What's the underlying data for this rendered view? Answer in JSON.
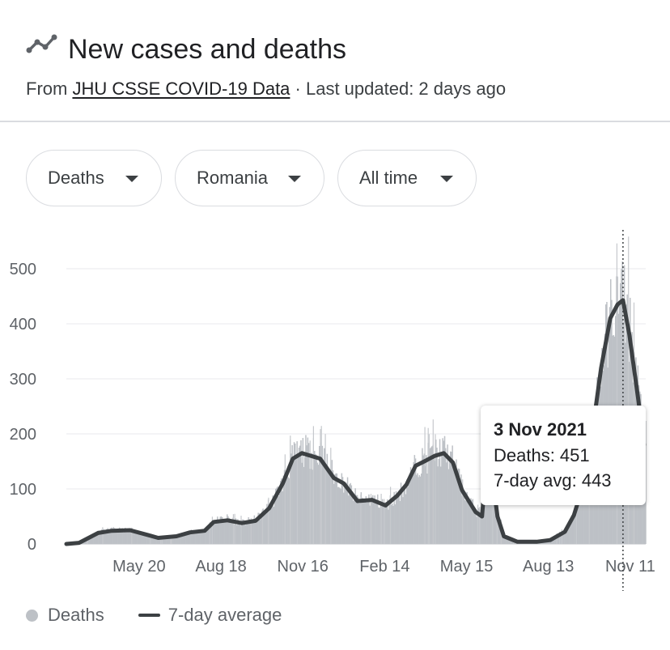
{
  "header": {
    "title": "New cases and deaths",
    "subtitle_prefix": "From ",
    "source_link": "JHU CSSE COVID-19 Data",
    "subtitle_suffix": " · Last updated: 2 days ago",
    "icon": "trend-line-icon"
  },
  "filters": {
    "metric": "Deaths",
    "region": "Romania",
    "range": "All time",
    "icon": "caret-down-icon"
  },
  "tooltip": {
    "date": "3 Nov 2021",
    "deaths_label": "Deaths: 451",
    "avg_label": "7-day avg: 443"
  },
  "legend": {
    "deaths": "Deaths",
    "average": "7-day average"
  },
  "colors": {
    "bars": "#bdc1c6",
    "bars_light": "#c6c9cd",
    "avg_line": "#3c4043",
    "grid": "#e8eaed"
  },
  "chart_data": {
    "type": "bar",
    "x_axis": "time",
    "tick_labels": [
      "May 20",
      "Aug 18",
      "Nov 16",
      "Feb 14",
      "May 15",
      "Aug 13",
      "Nov 11"
    ],
    "ylim": [
      0,
      570
    ],
    "yticks": [
      0,
      100,
      200,
      300,
      400,
      500
    ],
    "grid": true,
    "legend_position": "bottom-left",
    "highlighted": {
      "date": "3 Nov 2021",
      "deaths": 451,
      "avg": 443
    },
    "series": [
      {
        "name": "Deaths",
        "kind": "bar",
        "points": [
          [
            "2020-03-01",
            0
          ],
          [
            "2020-03-20",
            4
          ],
          [
            "2020-04-05",
            22
          ],
          [
            "2020-04-20",
            26
          ],
          [
            "2020-05-10",
            25
          ],
          [
            "2020-05-30",
            17
          ],
          [
            "2020-06-10",
            11
          ],
          [
            "2020-06-30",
            15
          ],
          [
            "2020-07-15",
            22
          ],
          [
            "2020-07-31",
            26
          ],
          [
            "2020-08-10",
            42
          ],
          [
            "2020-08-25",
            47
          ],
          [
            "2020-09-10",
            38
          ],
          [
            "2020-09-25",
            45
          ],
          [
            "2020-10-10",
            68
          ],
          [
            "2020-10-25",
            115
          ],
          [
            "2020-11-05",
            158
          ],
          [
            "2020-11-15",
            170
          ],
          [
            "2020-11-25",
            165
          ],
          [
            "2020-12-05",
            160
          ],
          [
            "2020-12-20",
            125
          ],
          [
            "2020-12-31",
            112
          ],
          [
            "2021-01-15",
            80
          ],
          [
            "2021-01-31",
            82
          ],
          [
            "2021-02-15",
            70
          ],
          [
            "2021-02-28",
            90
          ],
          [
            "2021-03-10",
            110
          ],
          [
            "2021-03-20",
            145
          ],
          [
            "2021-04-01",
            155
          ],
          [
            "2021-04-10",
            165
          ],
          [
            "2021-04-20",
            170
          ],
          [
            "2021-04-30",
            150
          ],
          [
            "2021-05-10",
            100
          ],
          [
            "2021-05-25",
            60
          ],
          [
            "2021-06-01",
            52
          ],
          [
            "2021-06-03",
            90
          ],
          [
            "2021-06-05",
            150
          ],
          [
            "2021-06-08",
            155
          ],
          [
            "2021-06-12",
            130
          ],
          [
            "2021-06-18",
            50
          ],
          [
            "2021-06-25",
            15
          ],
          [
            "2021-07-10",
            5
          ],
          [
            "2021-07-31",
            5
          ],
          [
            "2021-08-15",
            8
          ],
          [
            "2021-08-31",
            24
          ],
          [
            "2021-09-10",
            55
          ],
          [
            "2021-09-20",
            110
          ],
          [
            "2021-09-30",
            210
          ],
          [
            "2021-10-10",
            330
          ],
          [
            "2021-10-20",
            420
          ],
          [
            "2021-10-28",
            440
          ],
          [
            "2021-11-03",
            451
          ],
          [
            "2021-11-10",
            390
          ],
          [
            "2021-11-20",
            270
          ],
          [
            "2021-11-26",
            190
          ]
        ]
      },
      {
        "name": "7-day average",
        "kind": "line",
        "points": [
          [
            "2020-03-01",
            0
          ],
          [
            "2020-03-15",
            2
          ],
          [
            "2020-04-05",
            20
          ],
          [
            "2020-04-20",
            24
          ],
          [
            "2020-05-10",
            25
          ],
          [
            "2020-05-30",
            16
          ],
          [
            "2020-06-10",
            11
          ],
          [
            "2020-06-30",
            14
          ],
          [
            "2020-07-15",
            21
          ],
          [
            "2020-07-31",
            24
          ],
          [
            "2020-08-10",
            40
          ],
          [
            "2020-08-25",
            43
          ],
          [
            "2020-09-10",
            38
          ],
          [
            "2020-09-25",
            42
          ],
          [
            "2020-10-10",
            65
          ],
          [
            "2020-10-25",
            110
          ],
          [
            "2020-11-05",
            155
          ],
          [
            "2020-11-15",
            165
          ],
          [
            "2020-11-25",
            160
          ],
          [
            "2020-12-05",
            155
          ],
          [
            "2020-12-20",
            120
          ],
          [
            "2020-12-31",
            110
          ],
          [
            "2021-01-15",
            78
          ],
          [
            "2021-01-31",
            80
          ],
          [
            "2021-02-15",
            70
          ],
          [
            "2021-02-28",
            88
          ],
          [
            "2021-03-10",
            108
          ],
          [
            "2021-03-20",
            142
          ],
          [
            "2021-04-01",
            152
          ],
          [
            "2021-04-10",
            160
          ],
          [
            "2021-04-20",
            165
          ],
          [
            "2021-04-30",
            148
          ],
          [
            "2021-05-10",
            98
          ],
          [
            "2021-05-25",
            58
          ],
          [
            "2021-06-01",
            50
          ],
          [
            "2021-06-03",
            90
          ],
          [
            "2021-06-05",
            148
          ],
          [
            "2021-06-08",
            152
          ],
          [
            "2021-06-12",
            128
          ],
          [
            "2021-06-18",
            50
          ],
          [
            "2021-06-25",
            14
          ],
          [
            "2021-07-10",
            4
          ],
          [
            "2021-07-31",
            4
          ],
          [
            "2021-08-15",
            7
          ],
          [
            "2021-08-31",
            22
          ],
          [
            "2021-09-10",
            52
          ],
          [
            "2021-09-20",
            105
          ],
          [
            "2021-09-30",
            200
          ],
          [
            "2021-10-10",
            320
          ],
          [
            "2021-10-20",
            410
          ],
          [
            "2021-10-28",
            435
          ],
          [
            "2021-11-03",
            443
          ],
          [
            "2021-11-10",
            380
          ],
          [
            "2021-11-20",
            260
          ],
          [
            "2021-11-26",
            180
          ]
        ]
      }
    ]
  }
}
